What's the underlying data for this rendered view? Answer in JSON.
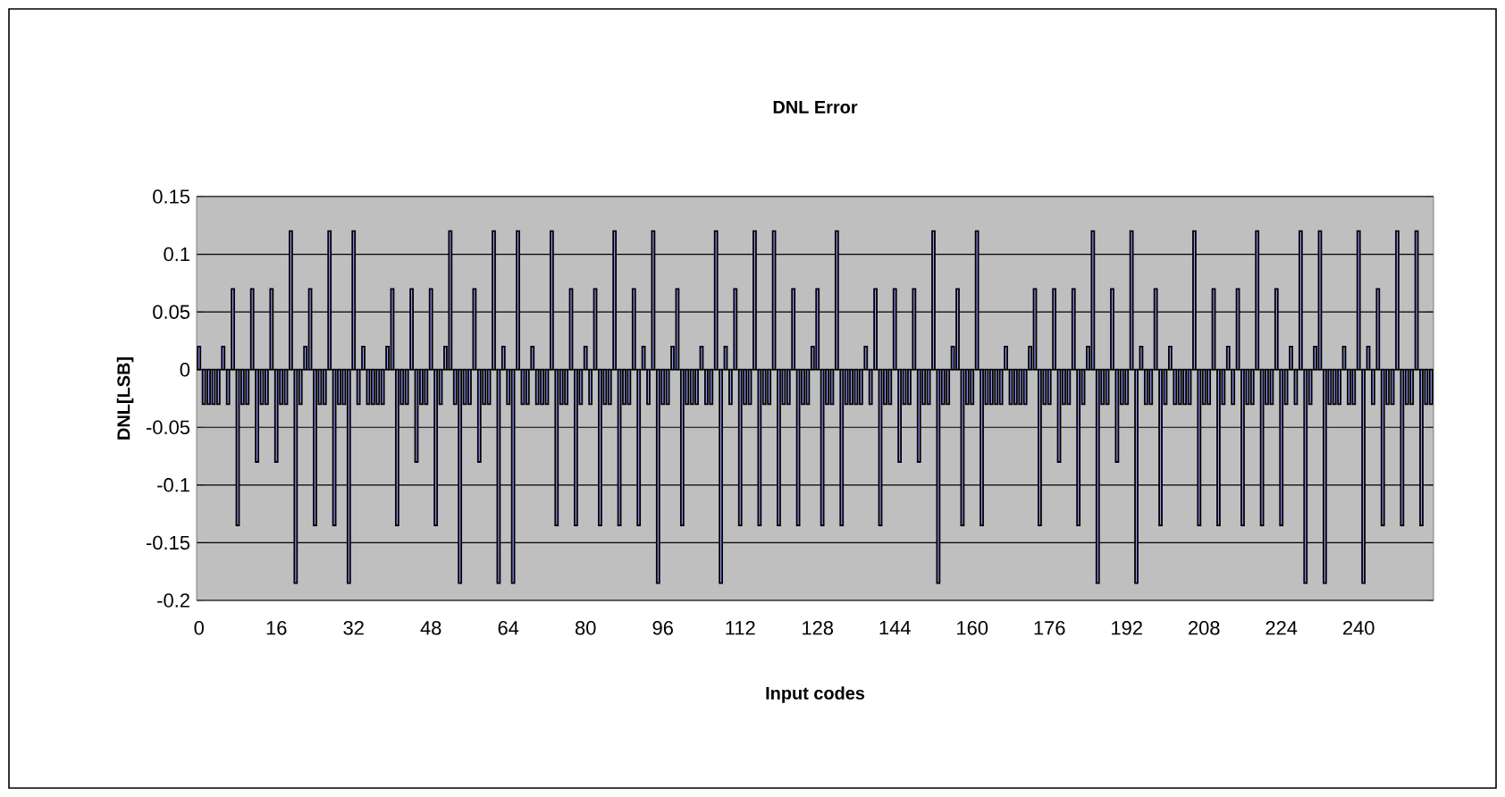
{
  "chart_data": {
    "type": "bar",
    "title": "DNL Error",
    "xlabel": "Input codes",
    "ylabel": "DNL[LSB]",
    "categories": [
      "0",
      null,
      null,
      null,
      null,
      null,
      null,
      null,
      null,
      null,
      null,
      null,
      null,
      null,
      null,
      null,
      "16",
      null,
      null,
      null,
      null,
      null,
      null,
      null,
      null,
      null,
      null,
      null,
      null,
      null,
      null,
      null,
      "32",
      null,
      null,
      null,
      null,
      null,
      null,
      null,
      null,
      null,
      null,
      null,
      null,
      null,
      null,
      null,
      "48",
      null,
      null,
      null,
      null,
      null,
      null,
      null,
      null,
      null,
      null,
      null,
      null,
      null,
      null,
      null,
      "64",
      null,
      null,
      null,
      null,
      null,
      null,
      null,
      null,
      null,
      null,
      null,
      null,
      null,
      null,
      null,
      "80",
      null,
      null,
      null,
      null,
      null,
      null,
      null,
      null,
      null,
      null,
      null,
      null,
      null,
      null,
      null,
      "96",
      null,
      null,
      null,
      null,
      null,
      null,
      null,
      null,
      null,
      null,
      null,
      null,
      null,
      null,
      null,
      "112",
      null,
      null,
      null,
      null,
      null,
      null,
      null,
      null,
      null,
      null,
      null,
      null,
      null,
      null,
      null,
      "128",
      null,
      null,
      null,
      null,
      null,
      null,
      null,
      null,
      null,
      null,
      null,
      null,
      null,
      null,
      null,
      "144",
      null,
      null,
      null,
      null,
      null,
      null,
      null,
      null,
      null,
      null,
      null,
      null,
      null,
      null,
      null,
      "160",
      null,
      null,
      null,
      null,
      null,
      null,
      null,
      null,
      null,
      null,
      null,
      null,
      null,
      null,
      null,
      "176",
      null,
      null,
      null,
      null,
      null,
      null,
      null,
      null,
      null,
      null,
      null,
      null,
      null,
      null,
      null,
      "192",
      null,
      null,
      null,
      null,
      null,
      null,
      null,
      null,
      null,
      null,
      null,
      null,
      null,
      null,
      null,
      "208",
      null,
      null,
      null,
      null,
      null,
      null,
      null,
      null,
      null,
      null,
      null,
      null,
      null,
      null,
      null,
      "224",
      null,
      null,
      null,
      null,
      null,
      null,
      null,
      null,
      null,
      null,
      null,
      null,
      null,
      null,
      null,
      "240",
      null,
      null,
      null,
      null,
      null,
      null,
      null,
      null,
      null,
      null,
      null,
      null,
      null,
      null,
      null
    ],
    "values": [
      0.02,
      -0.03,
      -0.03,
      -0.03,
      -0.03,
      0.02,
      -0.03,
      0.07,
      -0.135,
      -0.03,
      -0.03,
      0.07,
      -0.08,
      -0.03,
      -0.03,
      0.07,
      -0.08,
      -0.03,
      -0.03,
      0.12,
      -0.185,
      -0.03,
      0.02,
      0.07,
      -0.135,
      -0.03,
      -0.03,
      0.12,
      -0.135,
      -0.03,
      -0.03,
      -0.185,
      0.12,
      -0.03,
      0.02,
      -0.03,
      -0.03,
      -0.03,
      -0.03,
      0.02,
      0.07,
      -0.135,
      -0.03,
      -0.03,
      0.07,
      -0.08,
      -0.03,
      -0.03,
      0.07,
      -0.135,
      -0.03,
      0.02,
      0.12,
      -0.03,
      -0.185,
      -0.03,
      -0.03,
      0.07,
      -0.08,
      -0.03,
      -0.03,
      0.12,
      -0.185,
      0.02,
      -0.03,
      -0.185,
      0.12,
      -0.03,
      -0.03,
      0.02,
      -0.03,
      -0.03,
      -0.03,
      0.12,
      -0.135,
      -0.03,
      -0.03,
      0.07,
      -0.135,
      -0.03,
      0.02,
      -0.03,
      0.07,
      -0.135,
      -0.03,
      -0.03,
      0.12,
      -0.135,
      -0.03,
      -0.03,
      0.07,
      -0.135,
      0.02,
      -0.03,
      0.12,
      -0.185,
      -0.03,
      -0.03,
      0.02,
      0.07,
      -0.135,
      -0.03,
      -0.03,
      -0.03,
      0.02,
      -0.03,
      -0.03,
      0.12,
      -0.185,
      0.02,
      -0.03,
      0.07,
      -0.135,
      -0.03,
      -0.03,
      0.12,
      -0.135,
      -0.03,
      -0.03,
      0.12,
      -0.135,
      -0.03,
      -0.03,
      0.07,
      -0.135,
      -0.03,
      -0.03,
      0.02,
      0.07,
      -0.135,
      -0.03,
      -0.03,
      0.12,
      -0.135,
      -0.03,
      -0.03,
      -0.03,
      -0.03,
      0.02,
      -0.03,
      0.07,
      -0.135,
      -0.03,
      -0.03,
      0.07,
      -0.08,
      -0.03,
      -0.03,
      0.07,
      -0.08,
      -0.03,
      -0.03,
      0.12,
      -0.185,
      -0.03,
      -0.03,
      0.02,
      0.07,
      -0.135,
      -0.03,
      -0.03,
      0.12,
      -0.135,
      -0.03,
      -0.03,
      -0.03,
      -0.03,
      0.02,
      -0.03,
      -0.03,
      -0.03,
      -0.03,
      0.02,
      0.07,
      -0.135,
      -0.03,
      -0.03,
      0.07,
      -0.08,
      -0.03,
      -0.03,
      0.07,
      -0.135,
      -0.03,
      0.02,
      0.12,
      -0.185,
      -0.03,
      -0.03,
      0.07,
      -0.08,
      -0.03,
      -0.03,
      0.12,
      -0.185,
      0.02,
      -0.03,
      -0.03,
      0.07,
      -0.135,
      -0.03,
      0.02,
      -0.03,
      -0.03,
      -0.03,
      -0.03,
      0.12,
      -0.135,
      -0.03,
      -0.03,
      0.07,
      -0.135,
      -0.03,
      0.02,
      -0.03,
      0.07,
      -0.135,
      -0.03,
      -0.03,
      0.12,
      -0.135,
      -0.03,
      -0.03,
      0.07,
      -0.135,
      -0.03,
      0.02,
      -0.03,
      0.12,
      -0.185,
      -0.03,
      0.02,
      0.12,
      -0.185,
      -0.03,
      -0.03,
      -0.03,
      0.02,
      -0.03,
      -0.03,
      0.12,
      -0.185,
      0.02,
      -0.03,
      0.07,
      -0.135,
      -0.03,
      -0.03,
      0.12,
      -0.135,
      -0.03,
      -0.03,
      0.12,
      -0.135,
      -0.03,
      -0.03
    ],
    "color": "#9999ff",
    "ylim": [
      -0.2,
      0.15
    ],
    "yticks": [
      -0.2,
      -0.15,
      -0.1,
      -0.05,
      0,
      0.05,
      0.1,
      0.15
    ],
    "grid": "y"
  }
}
